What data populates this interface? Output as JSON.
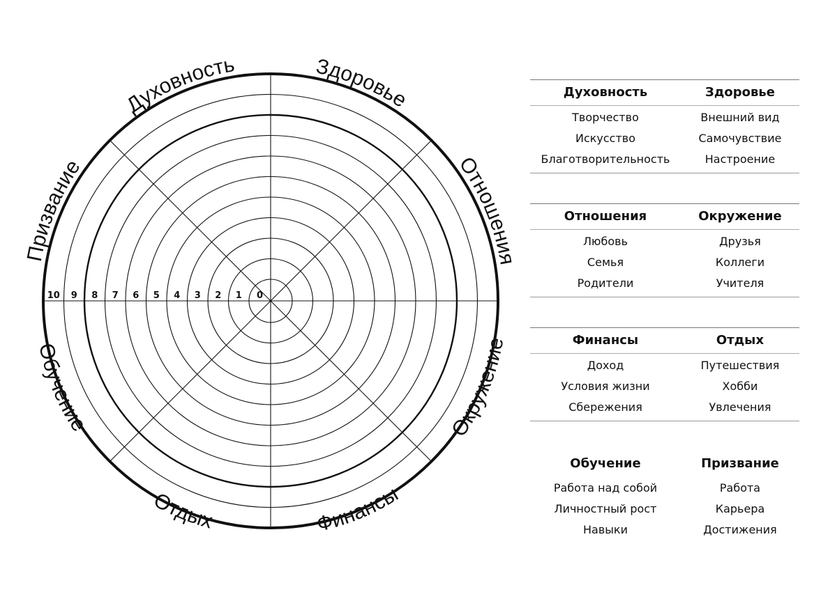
{
  "wheel": {
    "segments": [
      "Духовность",
      "Здоровье",
      "Отношения",
      "Окружение",
      "Финансы",
      "Отдых",
      "Обучение",
      "Призвание"
    ],
    "scale": [
      "10",
      "9",
      "8",
      "7",
      "6",
      "5",
      "4",
      "3",
      "2",
      "1",
      "0"
    ]
  },
  "table": {
    "groups": [
      {
        "left": {
          "title": "Духовность",
          "items": [
            "Творчество",
            "Искусство",
            "Благотворительность"
          ]
        },
        "right": {
          "title": "Здоровье",
          "items": [
            "Внешний вид",
            "Самочувствие",
            "Настроение"
          ]
        }
      },
      {
        "left": {
          "title": "Отношения",
          "items": [
            "Любовь",
            "Семья",
            "Родители"
          ]
        },
        "right": {
          "title": "Окружение",
          "items": [
            "Друзья",
            "Коллеги",
            "Учителя"
          ]
        }
      },
      {
        "left": {
          "title": "Финансы",
          "items": [
            "Доход",
            "Условия жизни",
            "Сбережения"
          ]
        },
        "right": {
          "title": "Отдых",
          "items": [
            "Путешествия",
            "Хобби",
            "Увлечения"
          ]
        }
      },
      {
        "left": {
          "title": "Обучение",
          "items": [
            "Работа над собой",
            "Личностный рост",
            "Навыки"
          ]
        },
        "right": {
          "title": "Призвание",
          "items": [
            "Работа",
            "Карьера",
            "Достижения"
          ]
        }
      }
    ]
  }
}
